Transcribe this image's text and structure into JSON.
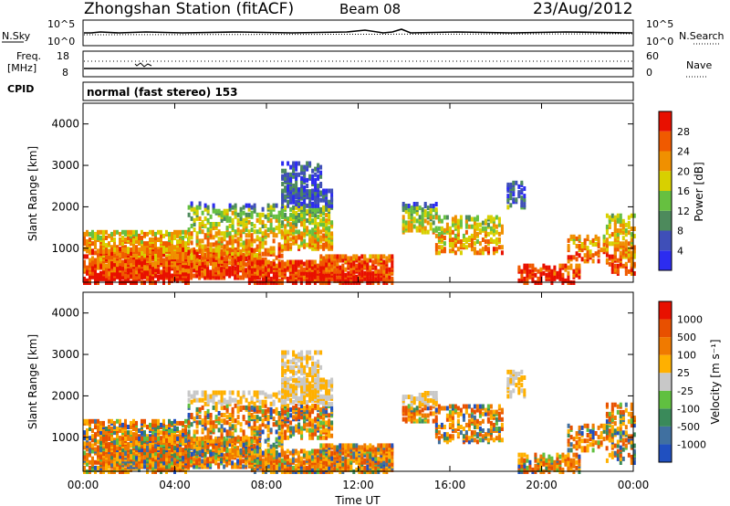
{
  "header": {
    "station": "Zhongshan Station (fitACF)",
    "beam": "Beam 08",
    "date": "23/Aug/2012"
  },
  "sky_panel": {
    "left_label": "N.Sky",
    "right_label": "N.Search",
    "left_ticks": [
      "10^5",
      "10^0"
    ],
    "right_ticks": [
      "10^5",
      "10^0"
    ]
  },
  "freq_panel": {
    "left_label_top": "Freq.",
    "left_label_bottom": "[MHz]",
    "right_label": "Nave",
    "left_ticks": [
      "18",
      "8"
    ],
    "right_ticks": [
      "60",
      "0"
    ]
  },
  "cpid": {
    "label": "CPID",
    "mode": "normal (fast stereo) 153"
  },
  "chart_data": [
    {
      "type": "heatmap",
      "name": "Power",
      "ylabel": "Slant Range [km]",
      "yticks": [
        "4000",
        "3000",
        "2000",
        "1000"
      ],
      "ylim": [
        180,
        4500
      ],
      "colorbar_label": "Power [dB]",
      "colorbar_ticks": [
        "28",
        "24",
        "20",
        "16",
        "12",
        "8",
        "4"
      ],
      "colors": [
        "#2c2cf0",
        "#3f4fb8",
        "#4d8a5c",
        "#66c040",
        "#d8d000",
        "#f09000",
        "#f05a00",
        "#e81000"
      ]
    },
    {
      "type": "heatmap",
      "name": "Velocity",
      "ylabel": "Slant Range [km]",
      "yticks": [
        "4000",
        "3000",
        "2000",
        "1000"
      ],
      "ylim": [
        180,
        4500
      ],
      "colorbar_label": "Velocity  [m s⁻¹]",
      "colorbar_ticks": [
        "1000",
        "500",
        "100",
        "25",
        "-25",
        "-100",
        "-500",
        "-1000"
      ],
      "colors": [
        "#2050c0",
        "#4070a0",
        "#3a8a5a",
        "#60c040",
        "#c8c8c8",
        "#ffb000",
        "#f07a00",
        "#e85000",
        "#e81000"
      ]
    }
  ],
  "xaxis": {
    "label": "Time UT",
    "ticks": [
      "00:00",
      "04:00",
      "08:00",
      "12:00",
      "16:00",
      "20:00",
      "00:00"
    ]
  }
}
